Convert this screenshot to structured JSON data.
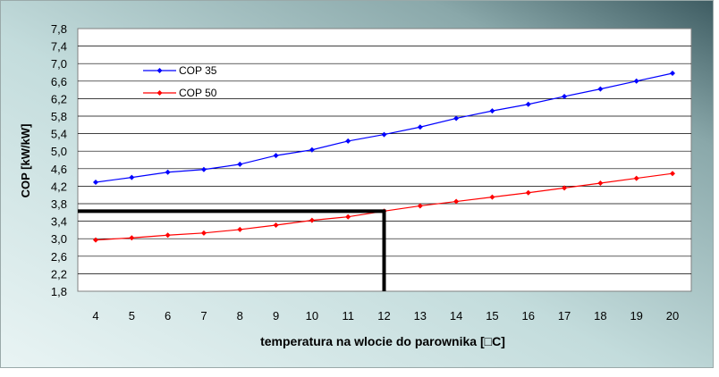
{
  "chart_data": {
    "type": "line",
    "xlabel": "temperatura na wlocie do parownika [°C]",
    "xlabel_prefix": "temperatura na wlocie do parownika [",
    "xlabel_unit": "□",
    "xlabel_suffix": "C]",
    "ylabel": "COP  [kW/kW]",
    "x": [
      4,
      5,
      6,
      7,
      8,
      9,
      10,
      11,
      12,
      13,
      14,
      15,
      16,
      17,
      18,
      19,
      20
    ],
    "xlim": [
      4,
      20
    ],
    "ylim": [
      1.8,
      7.8
    ],
    "yticks": [
      "1,8",
      "2,2",
      "2,6",
      "3,0",
      "3,4",
      "3,8",
      "4,2",
      "4,6",
      "5,0",
      "5,4",
      "5,8",
      "6,2",
      "6,6",
      "7,0",
      "7,4",
      "7,8"
    ],
    "grid": true,
    "legend_position": "top-left",
    "series": [
      {
        "name": "COP 35",
        "color": "#0000ff",
        "values": [
          4.29,
          4.4,
          4.52,
          4.58,
          4.7,
          4.9,
          5.03,
          5.23,
          5.38,
          5.55,
          5.75,
          5.92,
          6.07,
          6.25,
          6.42,
          6.6,
          6.78
        ]
      },
      {
        "name": "COP 50",
        "color": "#ff0000",
        "values": [
          2.97,
          3.02,
          3.08,
          3.13,
          3.21,
          3.31,
          3.42,
          3.5,
          3.63,
          3.75,
          3.85,
          3.95,
          4.05,
          4.16,
          4.27,
          4.38,
          4.49
        ]
      }
    ],
    "annotation": {
      "type": "reference-lines",
      "x": 12,
      "y": 3.63,
      "color": "#000000"
    }
  }
}
